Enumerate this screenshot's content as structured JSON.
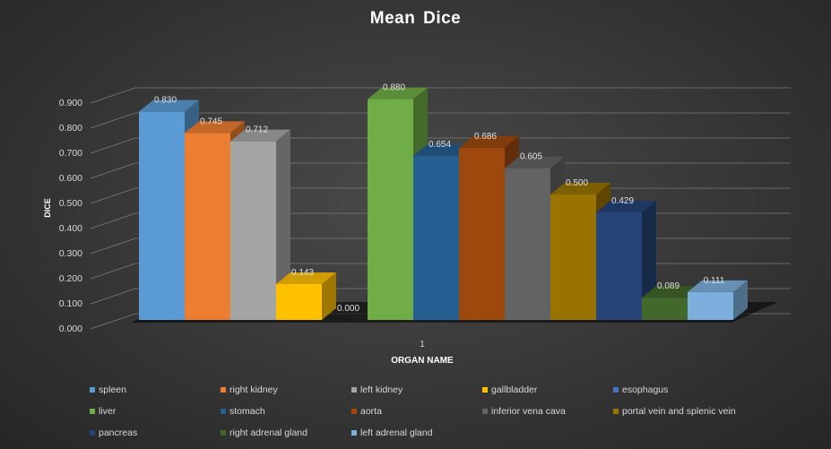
{
  "chart_data": {
    "type": "bar",
    "title": "Mean Dice",
    "xlabel": "ORGAN NAME",
    "ylabel": "DICE",
    "categories": [
      "1"
    ],
    "ylim": [
      0,
      0.9
    ],
    "yticks": [
      "0.000",
      "0.100",
      "0.200",
      "0.300",
      "0.400",
      "0.500",
      "0.600",
      "0.700",
      "0.800",
      "0.900"
    ],
    "grid": true,
    "legend_position": "bottom",
    "series": [
      {
        "name": "spleen",
        "values": [
          0.83
        ],
        "label": "0.830",
        "color": "#5b9bd5"
      },
      {
        "name": "right kidney",
        "values": [
          0.745
        ],
        "label": "0.745",
        "color": "#ed7d31"
      },
      {
        "name": "left kidney",
        "values": [
          0.712
        ],
        "label": "0.712",
        "color": "#a5a5a5"
      },
      {
        "name": "gallbladder",
        "values": [
          0.143
        ],
        "label": "0.143",
        "color": "#ffc000"
      },
      {
        "name": "esophagus",
        "values": [
          0.0
        ],
        "label": "0.000",
        "color": "#4472c4"
      },
      {
        "name": "liver",
        "values": [
          0.88
        ],
        "label": "0.880",
        "color": "#70ad47"
      },
      {
        "name": "stomach",
        "values": [
          0.654
        ],
        "label": "0.654",
        "color": "#255e91"
      },
      {
        "name": "aorta",
        "values": [
          0.686
        ],
        "label": "0.686",
        "color": "#9e480e"
      },
      {
        "name": "inferior vena cava",
        "values": [
          0.605
        ],
        "label": "0.605",
        "color": "#636363"
      },
      {
        "name": "portal vein and splenic vein",
        "values": [
          0.5
        ],
        "label": "0.500",
        "color": "#997300"
      },
      {
        "name": "pancreas",
        "values": [
          0.429
        ],
        "label": "0.429",
        "color": "#264478"
      },
      {
        "name": "right adrenal gland",
        "values": [
          0.089
        ],
        "label": "0.089",
        "color": "#43682b"
      },
      {
        "name": "left adrenal gland",
        "values": [
          0.111
        ],
        "label": "0.111",
        "color": "#7cafdd"
      }
    ]
  }
}
